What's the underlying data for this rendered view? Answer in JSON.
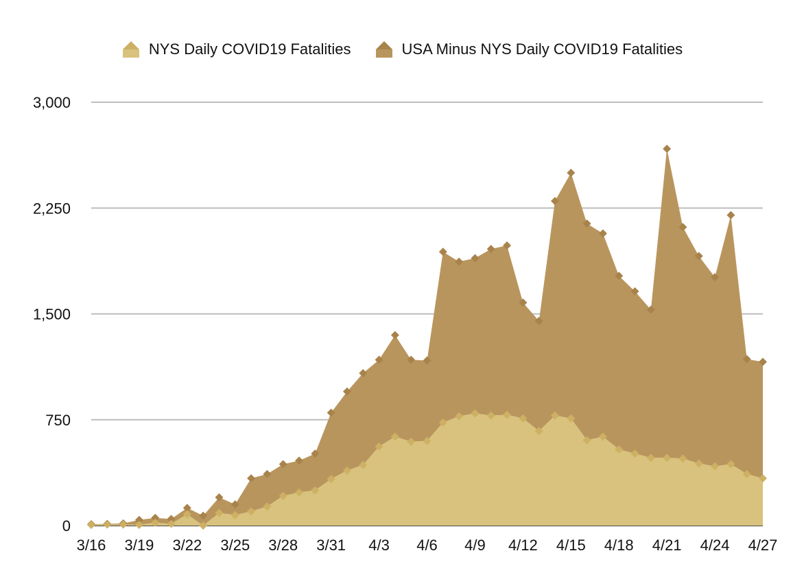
{
  "chart_data": {
    "type": "area",
    "stacked": true,
    "title": "",
    "xlabel": "",
    "ylabel": "",
    "ylim": [
      0,
      3000
    ],
    "yticks": [
      0,
      750,
      1500,
      2250,
      3000
    ],
    "ytick_labels": [
      "0",
      "750",
      "1,500",
      "2,250",
      "3,000"
    ],
    "grid": true,
    "legend_position": "top-center",
    "x": [
      "3/16",
      "3/17",
      "3/18",
      "3/19",
      "3/20",
      "3/21",
      "3/22",
      "3/23",
      "3/24",
      "3/25",
      "3/26",
      "3/27",
      "3/28",
      "3/29",
      "3/30",
      "3/31",
      "4/1",
      "4/2",
      "4/3",
      "4/4",
      "4/5",
      "4/6",
      "4/7",
      "4/8",
      "4/9",
      "4/10",
      "4/11",
      "4/12",
      "4/13",
      "4/14",
      "4/15",
      "4/16",
      "4/17",
      "4/18",
      "4/19",
      "4/20",
      "4/21",
      "4/22",
      "4/23",
      "4/24",
      "4/25",
      "4/26",
      "4/27"
    ],
    "xtick_labels": [
      "3/16",
      "3/19",
      "3/22",
      "3/25",
      "3/28",
      "3/31",
      "4/3",
      "4/6",
      "4/9",
      "4/12",
      "4/15",
      "4/18",
      "4/21",
      "4/24",
      "4/27"
    ],
    "series": [
      {
        "name": "NYS Daily COVID19 Fatalities",
        "color": "#d8c27d",
        "marker": "#cdb063",
        "values": [
          5,
          7,
          7,
          5,
          20,
          12,
          80,
          0,
          90,
          75,
          100,
          135,
          210,
          235,
          250,
          330,
          390,
          430,
          560,
          630,
          595,
          600,
          730,
          775,
          795,
          780,
          785,
          760,
          670,
          780,
          760,
          605,
          630,
          540,
          510,
          480,
          480,
          475,
          440,
          420,
          435,
          365,
          335
        ]
      },
      {
        "name": "USA Minus NYS Daily COVID19 Fatalities",
        "color": "#b9955e",
        "marker": "#a8834b",
        "values": [
          5,
          5,
          8,
          35,
          35,
          35,
          45,
          70,
          110,
          75,
          235,
          230,
          225,
          225,
          260,
          470,
          560,
          650,
          615,
          720,
          580,
          570,
          1210,
          1095,
          1100,
          1180,
          1200,
          820,
          780,
          1520,
          1740,
          1535,
          1440,
          1230,
          1150,
          1050,
          2190,
          1640,
          1470,
          1340,
          1765,
          815,
          825
        ]
      }
    ]
  }
}
